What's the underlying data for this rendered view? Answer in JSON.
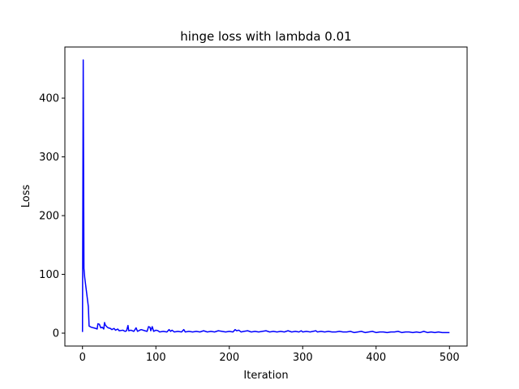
{
  "chart_data": {
    "type": "line",
    "title": "hinge loss with lambda 0.01",
    "xlabel": "Iteration",
    "ylabel": "Loss",
    "xlim": [
      -24,
      524
    ],
    "ylim": [
      -22,
      487
    ],
    "xticks": [
      0,
      100,
      200,
      300,
      400,
      500
    ],
    "yticks": [
      0,
      100,
      200,
      300,
      400
    ],
    "grid": false,
    "series": [
      {
        "color": "#0000ff",
        "points": [
          [
            0,
            2
          ],
          [
            1,
            465
          ],
          [
            2,
            110
          ],
          [
            3,
            95
          ],
          [
            5,
            75
          ],
          [
            7,
            55
          ],
          [
            8,
            45
          ],
          [
            9,
            12
          ],
          [
            12,
            10
          ],
          [
            15,
            9
          ],
          [
            18,
            8
          ],
          [
            20,
            7
          ],
          [
            21,
            16
          ],
          [
            23,
            15
          ],
          [
            25,
            9
          ],
          [
            27,
            10
          ],
          [
            29,
            7
          ],
          [
            30,
            18
          ],
          [
            31,
            14
          ],
          [
            33,
            11
          ],
          [
            35,
            9
          ],
          [
            38,
            8
          ],
          [
            40,
            6
          ],
          [
            43,
            8
          ],
          [
            45,
            5
          ],
          [
            48,
            7
          ],
          [
            50,
            4
          ],
          [
            55,
            5
          ],
          [
            58,
            3
          ],
          [
            60,
            4
          ],
          [
            62,
            13
          ],
          [
            63,
            4
          ],
          [
            66,
            5
          ],
          [
            70,
            3
          ],
          [
            73,
            9
          ],
          [
            75,
            3
          ],
          [
            78,
            5
          ],
          [
            80,
            6
          ],
          [
            85,
            4
          ],
          [
            88,
            3
          ],
          [
            90,
            11
          ],
          [
            92,
            10
          ],
          [
            93,
            4
          ],
          [
            95,
            11
          ],
          [
            97,
            3
          ],
          [
            100,
            5
          ],
          [
            103,
            4
          ],
          [
            105,
            2
          ],
          [
            110,
            3
          ],
          [
            115,
            2
          ],
          [
            118,
            6
          ],
          [
            120,
            3
          ],
          [
            122,
            5
          ],
          [
            125,
            2
          ],
          [
            130,
            3
          ],
          [
            135,
            2
          ],
          [
            138,
            6
          ],
          [
            140,
            2
          ],
          [
            145,
            3
          ],
          [
            150,
            2
          ],
          [
            155,
            3
          ],
          [
            160,
            2
          ],
          [
            165,
            4
          ],
          [
            170,
            2
          ],
          [
            175,
            3
          ],
          [
            180,
            2
          ],
          [
            185,
            4
          ],
          [
            190,
            3
          ],
          [
            195,
            2
          ],
          [
            200,
            3
          ],
          [
            205,
            2
          ],
          [
            208,
            6
          ],
          [
            210,
            4
          ],
          [
            213,
            5
          ],
          [
            216,
            2
          ],
          [
            220,
            3
          ],
          [
            225,
            4
          ],
          [
            230,
            2
          ],
          [
            235,
            3
          ],
          [
            240,
            2
          ],
          [
            245,
            3
          ],
          [
            250,
            4
          ],
          [
            255,
            2
          ],
          [
            260,
            3
          ],
          [
            265,
            2
          ],
          [
            270,
            3
          ],
          [
            275,
            2
          ],
          [
            280,
            4
          ],
          [
            285,
            2
          ],
          [
            290,
            3
          ],
          [
            295,
            2
          ],
          [
            298,
            4
          ],
          [
            300,
            2
          ],
          [
            305,
            3
          ],
          [
            310,
            2
          ],
          [
            318,
            4
          ],
          [
            320,
            2
          ],
          [
            325,
            3
          ],
          [
            330,
            2
          ],
          [
            335,
            3
          ],
          [
            340,
            2
          ],
          [
            345,
            2
          ],
          [
            350,
            3
          ],
          [
            355,
            2
          ],
          [
            360,
            2
          ],
          [
            365,
            3
          ],
          [
            370,
            1
          ],
          [
            375,
            2
          ],
          [
            380,
            3
          ],
          [
            385,
            1
          ],
          [
            390,
            2
          ],
          [
            395,
            3
          ],
          [
            400,
            1
          ],
          [
            405,
            2
          ],
          [
            410,
            2
          ],
          [
            415,
            1
          ],
          [
            420,
            2
          ],
          [
            425,
            2
          ],
          [
            430,
            3
          ],
          [
            435,
            1
          ],
          [
            440,
            2
          ],
          [
            445,
            2
          ],
          [
            450,
            1
          ],
          [
            455,
            2
          ],
          [
            460,
            1
          ],
          [
            465,
            3
          ],
          [
            470,
            1
          ],
          [
            475,
            2
          ],
          [
            480,
            1
          ],
          [
            485,
            2
          ],
          [
            490,
            1
          ],
          [
            495,
            1
          ],
          [
            500,
            1
          ]
        ]
      }
    ]
  }
}
